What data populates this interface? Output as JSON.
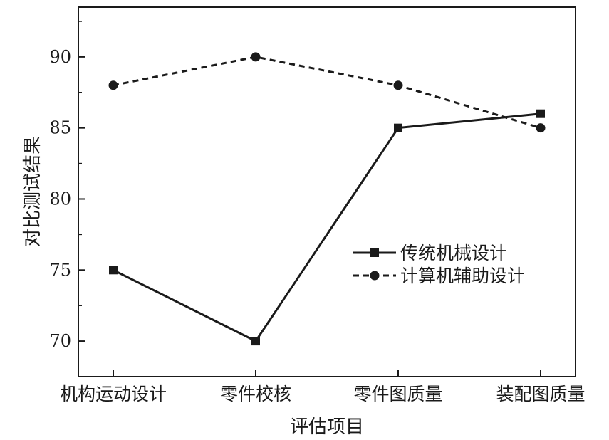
{
  "chart_data": {
    "type": "line",
    "categories": [
      "机构运动设计",
      "零件校核",
      "零件图质量",
      "装配图质量"
    ],
    "series": [
      {
        "name": "传统机械设计",
        "values": [
          75,
          70,
          85,
          86
        ],
        "marker": "square",
        "dash": "solid"
      },
      {
        "name": "计算机辅助设计",
        "values": [
          88,
          90,
          88,
          85
        ],
        "marker": "circle",
        "dash": "dashed"
      }
    ],
    "title": "",
    "xlabel": "评估项目",
    "ylabel": "对比测试结果",
    "ylim": [
      67.5,
      93.5
    ],
    "yticks": [
      70,
      75,
      80,
      85,
      90
    ],
    "ytick_labels": [
      "70",
      "75",
      "80",
      "85",
      "90"
    ],
    "grid": false,
    "legend_position": "center-right",
    "colors": {
      "line": "#1a1a1a",
      "background": "#ffffff"
    }
  }
}
